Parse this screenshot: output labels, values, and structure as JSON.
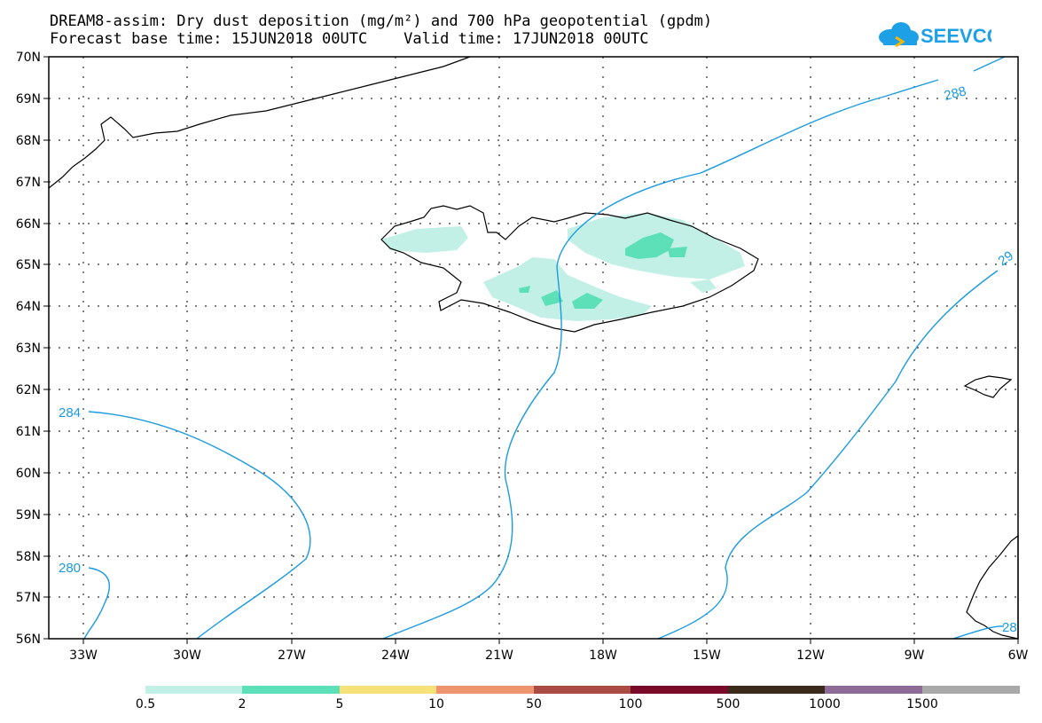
{
  "header": {
    "title_line1": "DREAM8-assim: Dry dust deposition (mg/m²) and 700 hPa geopotential (gpdm)",
    "title_line2": "Forecast base time: 15JUN2018 00UTC    Valid time: 17JUN2018 00UTC",
    "logo_text": "SEEVCCC"
  },
  "map": {
    "lon_range": [
      -34.5,
      -6
    ],
    "lat_range": [
      56,
      70
    ],
    "lon_ticks": [
      "33W",
      "30W",
      "27W",
      "24W",
      "21W",
      "18W",
      "15W",
      "12W",
      "9W",
      "6W"
    ],
    "lat_ticks": [
      "70N",
      "69N",
      "68N",
      "67N",
      "66N",
      "65N",
      "64N",
      "63N",
      "62N",
      "61N",
      "60N",
      "59N",
      "58N",
      "57N",
      "56N"
    ],
    "contour_color": "#1a9ae0",
    "contour_labels": [
      "288",
      "284",
      "280",
      "29",
      "28"
    ]
  },
  "colorbar": {
    "colors": [
      "#c2f0e6",
      "#5de0b8",
      "#f7e27a",
      "#ee9570",
      "#aa4c44",
      "#7a0a2a",
      "#3b2a1c",
      "#8e6b96",
      "#a9a9a9"
    ],
    "labels": [
      "0.5",
      "2",
      "5",
      "10",
      "50",
      "100",
      "500",
      "1000",
      "1500"
    ]
  }
}
